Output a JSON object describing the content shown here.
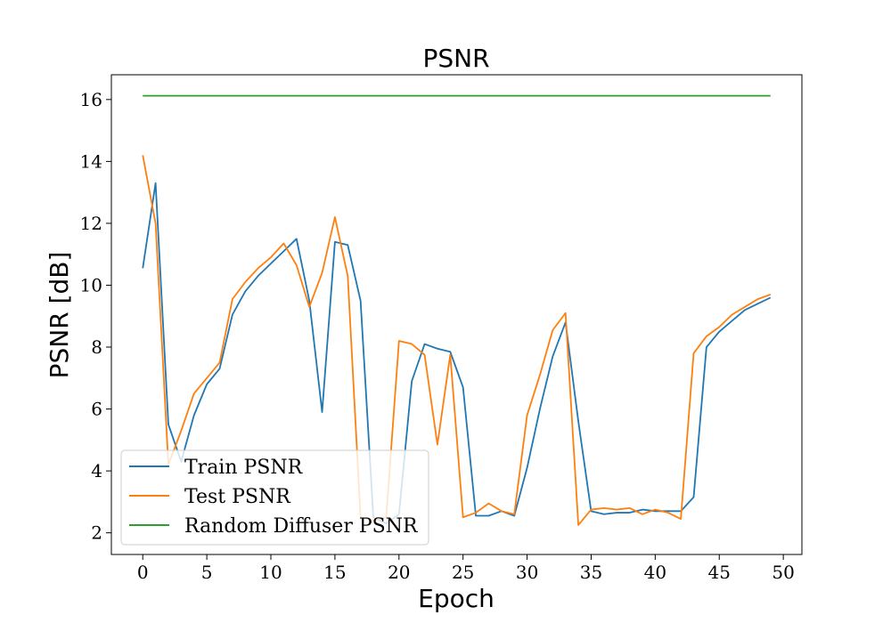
{
  "chart_data": {
    "type": "line",
    "title": "PSNR",
    "xlabel": "Epoch",
    "ylabel": "PSNR [dB]",
    "xlim": [
      -2.45,
      51.45
    ],
    "ylim": [
      1.3,
      16.8
    ],
    "xticks": [
      0,
      5,
      10,
      15,
      20,
      25,
      30,
      35,
      40,
      45,
      50
    ],
    "yticks": [
      2,
      4,
      6,
      8,
      10,
      12,
      14,
      16
    ],
    "grid": false,
    "legend_position": "lower-left",
    "x": [
      0,
      1,
      2,
      3,
      4,
      5,
      6,
      7,
      8,
      9,
      10,
      11,
      12,
      13,
      14,
      15,
      16,
      17,
      18,
      19,
      20,
      21,
      22,
      23,
      24,
      25,
      26,
      27,
      28,
      29,
      30,
      31,
      32,
      33,
      34,
      35,
      36,
      37,
      38,
      39,
      40,
      41,
      42,
      43,
      44,
      45,
      46,
      47,
      48,
      49
    ],
    "series": [
      {
        "name": "Train PSNR",
        "color": "#1f77b4",
        "values": [
          10.55,
          13.3,
          5.5,
          4.3,
          5.8,
          6.8,
          7.3,
          9.05,
          9.8,
          10.3,
          10.7,
          11.1,
          11.5,
          9.5,
          5.9,
          11.4,
          11.3,
          9.5,
          2.5,
          2.3,
          2.6,
          6.9,
          8.1,
          7.95,
          7.85,
          6.7,
          2.55,
          2.55,
          2.7,
          2.55,
          4.1,
          6.0,
          7.7,
          8.8,
          5.6,
          2.7,
          2.6,
          2.65,
          2.65,
          2.75,
          2.7,
          2.7,
          2.7,
          3.15,
          8.0,
          8.5,
          8.85,
          9.2,
          9.4,
          9.6
        ]
      },
      {
        "name": "Test PSNR",
        "color": "#ff7f0e",
        "values": [
          14.2,
          12.0,
          4.2,
          5.3,
          6.5,
          7.0,
          7.5,
          9.55,
          10.1,
          10.55,
          10.9,
          11.35,
          10.65,
          9.3,
          10.4,
          12.2,
          10.3,
          2.5,
          2.4,
          2.5,
          8.2,
          8.1,
          7.75,
          4.85,
          7.75,
          2.5,
          2.65,
          2.95,
          2.7,
          2.6,
          5.8,
          7.1,
          8.55,
          9.1,
          2.25,
          2.75,
          2.8,
          2.75,
          2.8,
          2.6,
          2.75,
          2.65,
          2.45,
          7.8,
          8.35,
          8.65,
          9.05,
          9.3,
          9.55,
          9.7
        ]
      },
      {
        "name": "Random Diffuser PSNR",
        "color": "#2ca02c",
        "values": [
          16.12,
          16.12,
          16.12,
          16.12,
          16.12,
          16.12,
          16.12,
          16.12,
          16.12,
          16.12,
          16.12,
          16.12,
          16.12,
          16.12,
          16.12,
          16.12,
          16.12,
          16.12,
          16.12,
          16.12,
          16.12,
          16.12,
          16.12,
          16.12,
          16.12,
          16.12,
          16.12,
          16.12,
          16.12,
          16.12,
          16.12,
          16.12,
          16.12,
          16.12,
          16.12,
          16.12,
          16.12,
          16.12,
          16.12,
          16.12,
          16.12,
          16.12,
          16.12,
          16.12,
          16.12,
          16.12,
          16.12,
          16.12,
          16.12,
          16.12
        ]
      }
    ]
  }
}
